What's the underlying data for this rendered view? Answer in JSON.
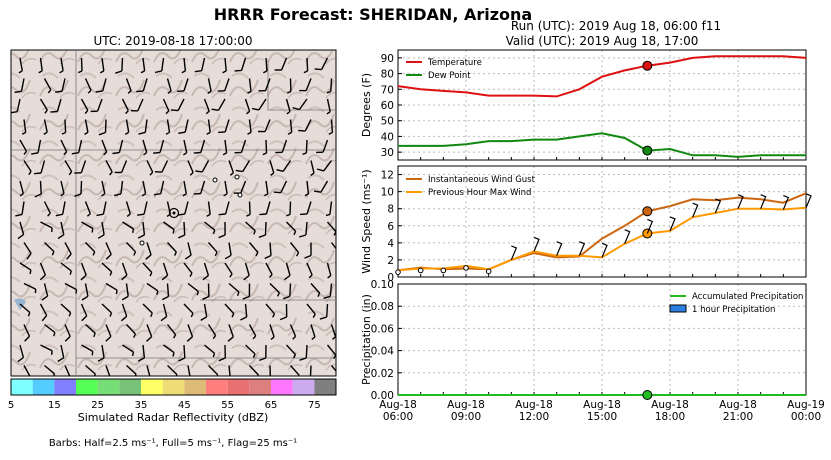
{
  "figure": {
    "title": "HRRR Forecast: SHERIDAN, Arizona",
    "map_title": "UTC: 2019-08-18 17:00:00",
    "run_line": "Run (UTC): 2019 Aug 18, 06:00 f11",
    "valid_line": "Valid (UTC): 2019 Aug 18, 17:00",
    "barbs_note": "Barbs: Half=2.5 ms⁻¹, Full=5 ms⁻¹, Flag=25 ms⁻¹"
  },
  "colorbar": {
    "label": "Simulated Radar Reflectivity (dBZ)",
    "ticks": [
      "5",
      "15",
      "25",
      "35",
      "45",
      "55",
      "65",
      "75"
    ],
    "colors": [
      "#7fffff",
      "#55ccff",
      "#7f7fff",
      "#55ff55",
      "#77dd77",
      "#77c277",
      "#ffff66",
      "#eedd77",
      "#ddbb77",
      "#ff7f7f",
      "#e87070",
      "#dd7f7f",
      "#ff77ff",
      "#ccaaee",
      "#7f7f7f"
    ]
  },
  "chart_data": [
    {
      "type": "line",
      "panel": "temperature",
      "ylabel": "Degrees (F)",
      "ylim": [
        25,
        95
      ],
      "yticks": [
        "30",
        "40",
        "50",
        "60",
        "70",
        "80",
        "90"
      ],
      "x": [
        "06:00",
        "07:00",
        "08:00",
        "09:00",
        "10:00",
        "11:00",
        "12:00",
        "13:00",
        "14:00",
        "15:00",
        "16:00",
        "17:00",
        "18:00",
        "19:00",
        "20:00",
        "21:00",
        "22:00",
        "23:00",
        "00:00"
      ],
      "series": [
        {
          "name": "Temperature",
          "color": "#dd1111",
          "values": [
            72,
            70,
            69,
            68,
            66,
            66,
            66,
            65.5,
            70,
            78,
            82,
            85,
            87,
            90,
            91,
            91,
            91,
            91,
            90
          ]
        },
        {
          "name": "Dew Point",
          "color": "#118811",
          "values": [
            34,
            34,
            34,
            35,
            37,
            37,
            38,
            38,
            40,
            42,
            39,
            31,
            32,
            28,
            28,
            27,
            28,
            28,
            28
          ]
        }
      ],
      "marker_hour_index": 11,
      "legend": "top-left",
      "grid": true
    },
    {
      "type": "line",
      "panel": "wind",
      "ylabel": "Wind Speed (ms⁻¹)",
      "ylim": [
        0,
        13
      ],
      "yticks": [
        "0",
        "2",
        "4",
        "6",
        "8",
        "10",
        "12"
      ],
      "series": [
        {
          "name": "Instantaneous Wind Gust",
          "color": "#cc6611",
          "values": [
            0.8,
            1.1,
            0.9,
            1.0,
            0.9,
            2.0,
            2.8,
            2.3,
            2.4,
            4.5,
            6.0,
            7.7,
            8.3,
            9.1,
            9.0,
            9.3,
            9.1,
            8.7,
            9.8
          ]
        },
        {
          "name": "Previous Hour Max Wind",
          "color": "#ff9900",
          "values": [
            0.8,
            1.0,
            1.0,
            1.3,
            0.9,
            2.0,
            3.0,
            2.5,
            2.5,
            2.3,
            3.9,
            5.1,
            5.4,
            7.0,
            7.5,
            8.0,
            8.0,
            7.9,
            8.1
          ]
        }
      ],
      "marker_hour_index": 11,
      "legend": "top-left",
      "grid": true
    },
    {
      "type": "bar",
      "panel": "precipitation",
      "ylabel": "Precipitation (in)",
      "ylim": [
        0,
        0.1
      ],
      "yticks": [
        "0.00",
        "0.02",
        "0.04",
        "0.06",
        "0.08",
        "0.10"
      ],
      "xticks": [
        [
          "Aug-18",
          "06:00"
        ],
        [
          "Aug-18",
          "09:00"
        ],
        [
          "Aug-18",
          "12:00"
        ],
        [
          "Aug-18",
          "15:00"
        ],
        [
          "Aug-18",
          "18:00"
        ],
        [
          "Aug-18",
          "21:00"
        ],
        [
          "Aug-19",
          "00:00"
        ]
      ],
      "series": [
        {
          "name": "Accumulated Precipitation",
          "color": "#22bb22",
          "values": [
            0,
            0,
            0,
            0,
            0,
            0,
            0,
            0,
            0,
            0,
            0,
            0,
            0,
            0,
            0,
            0,
            0,
            0,
            0
          ]
        },
        {
          "name": "1 hour Precipitation",
          "color": "#2b7fe0",
          "values": [
            0,
            0,
            0,
            0,
            0,
            0,
            0,
            0,
            0,
            0,
            0,
            0,
            0,
            0,
            0,
            0,
            0,
            0,
            0
          ]
        }
      ],
      "marker_hour_index": 11,
      "legend": "top-right",
      "grid": true
    }
  ]
}
